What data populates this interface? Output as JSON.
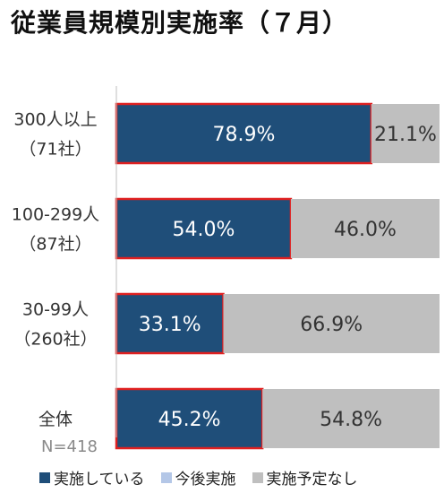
{
  "chart_data": {
    "type": "bar",
    "orientation": "horizontal",
    "stacked": true,
    "title": "従業員規模別実施率（７月）",
    "categories": [
      {
        "label": [
          "300人以上",
          "（71社）"
        ]
      },
      {
        "label": [
          "100-299人",
          "（87社）"
        ]
      },
      {
        "label": [
          "30-99人",
          "（260社）"
        ]
      },
      {
        "label": [
          "全体"
        ]
      }
    ],
    "series": [
      {
        "name": "実施している",
        "color": "#1f4e79",
        "border": "#e02020",
        "values": [
          78.9,
          54.0,
          33.1,
          45.2
        ],
        "labels": [
          "78.9%",
          "54.0%",
          "33.1%",
          "45.2%"
        ]
      },
      {
        "name": "今後実施",
        "color": "#b4c7e7",
        "values": [
          0,
          0,
          0,
          0
        ],
        "labels": []
      },
      {
        "name": "実施予定なし",
        "color": "#bfbfbf",
        "values": [
          21.1,
          46.0,
          66.9,
          54.8
        ],
        "labels": [
          "21.1%",
          "46.0%",
          "66.9%",
          "54.8%"
        ]
      }
    ],
    "xlim": [
      0,
      100
    ],
    "note": "N=418",
    "legend_position": "bottom"
  }
}
